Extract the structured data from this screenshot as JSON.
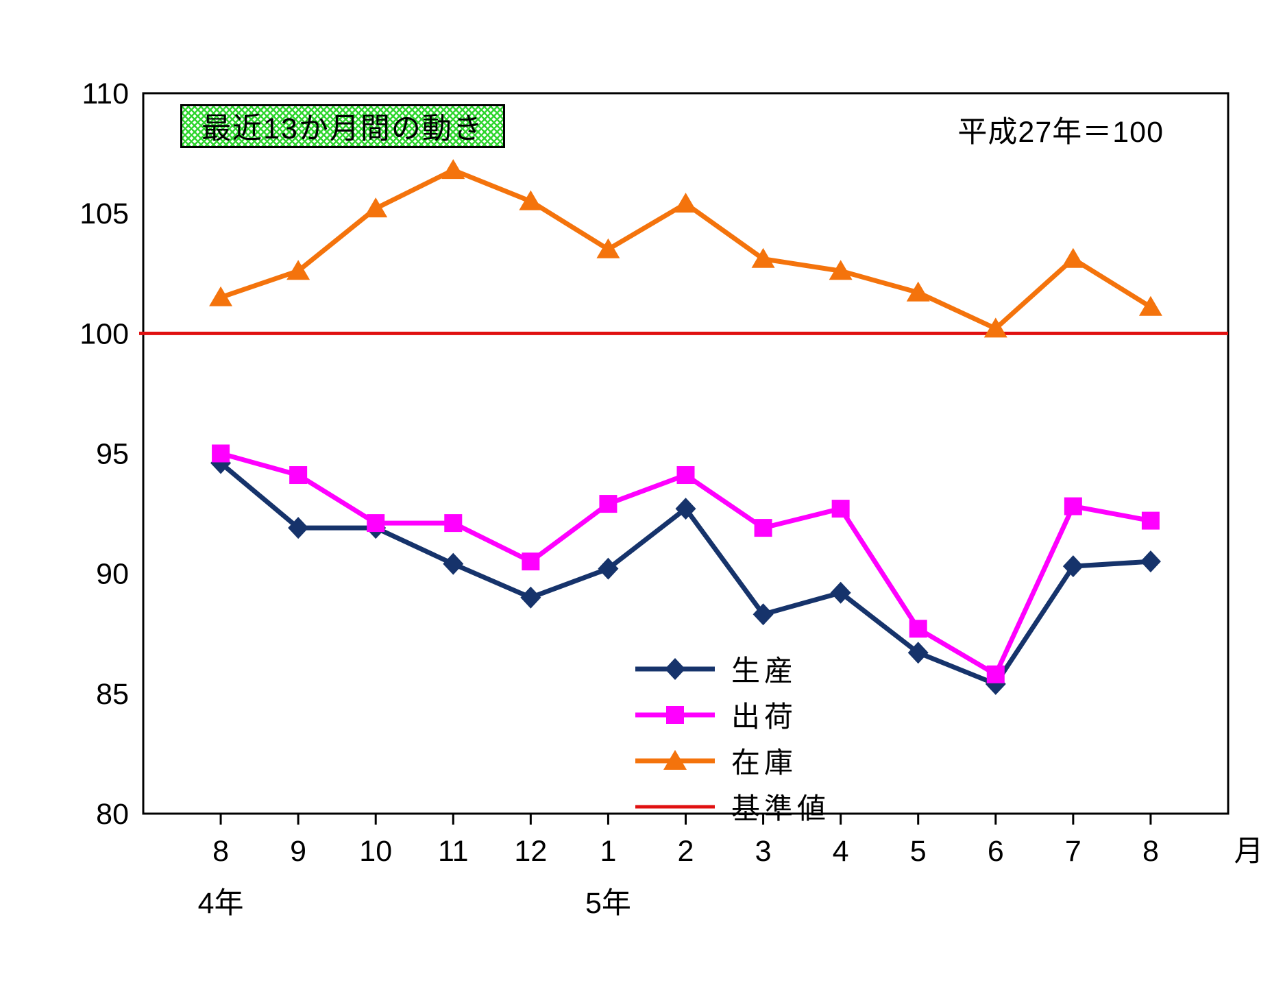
{
  "title": "最近13か月間の動き",
  "base_note": "平成27年＝100",
  "axis": {
    "month_suffix": "月",
    "year_labels": [
      {
        "label": "4年",
        "month_index": 0
      },
      {
        "label": "5年",
        "month_index": 5
      }
    ]
  },
  "colors": {
    "production": "#16336B",
    "shipment": "#FF00FF",
    "inventory": "#F4730C",
    "baseline": "#E01010",
    "axis_border": "#000000",
    "title_hatch_green": "#2ED52E"
  },
  "chart_data": {
    "type": "line",
    "categories": [
      "8",
      "9",
      "10",
      "11",
      "12",
      "1",
      "2",
      "3",
      "4",
      "5",
      "6",
      "7",
      "8"
    ],
    "ylim": [
      80,
      110
    ],
    "yticks": [
      110,
      105,
      100,
      95,
      90,
      85,
      80
    ],
    "grid": "off",
    "legend_position": "inside-bottom-center",
    "baseline_value": 100,
    "series": [
      {
        "name": "生産",
        "marker": "diamond",
        "color": "#16336B",
        "values": [
          94.6,
          91.9,
          91.9,
          90.4,
          89.0,
          90.2,
          92.7,
          88.3,
          89.2,
          86.7,
          85.4,
          90.3,
          90.5
        ]
      },
      {
        "name": "出荷",
        "marker": "square",
        "color": "#FF00FF",
        "values": [
          95.0,
          94.1,
          92.1,
          92.1,
          90.5,
          92.9,
          94.1,
          91.9,
          92.7,
          87.7,
          85.8,
          92.8,
          92.2
        ]
      },
      {
        "name": "在庫",
        "marker": "triangle",
        "color": "#F4730C",
        "values": [
          101.5,
          102.6,
          105.2,
          106.8,
          105.5,
          103.5,
          105.4,
          103.1,
          102.6,
          101.7,
          100.2,
          103.1,
          101.1
        ]
      },
      {
        "name": "基準値",
        "marker": "none",
        "color": "#E01010",
        "baseline": 100
      }
    ]
  }
}
